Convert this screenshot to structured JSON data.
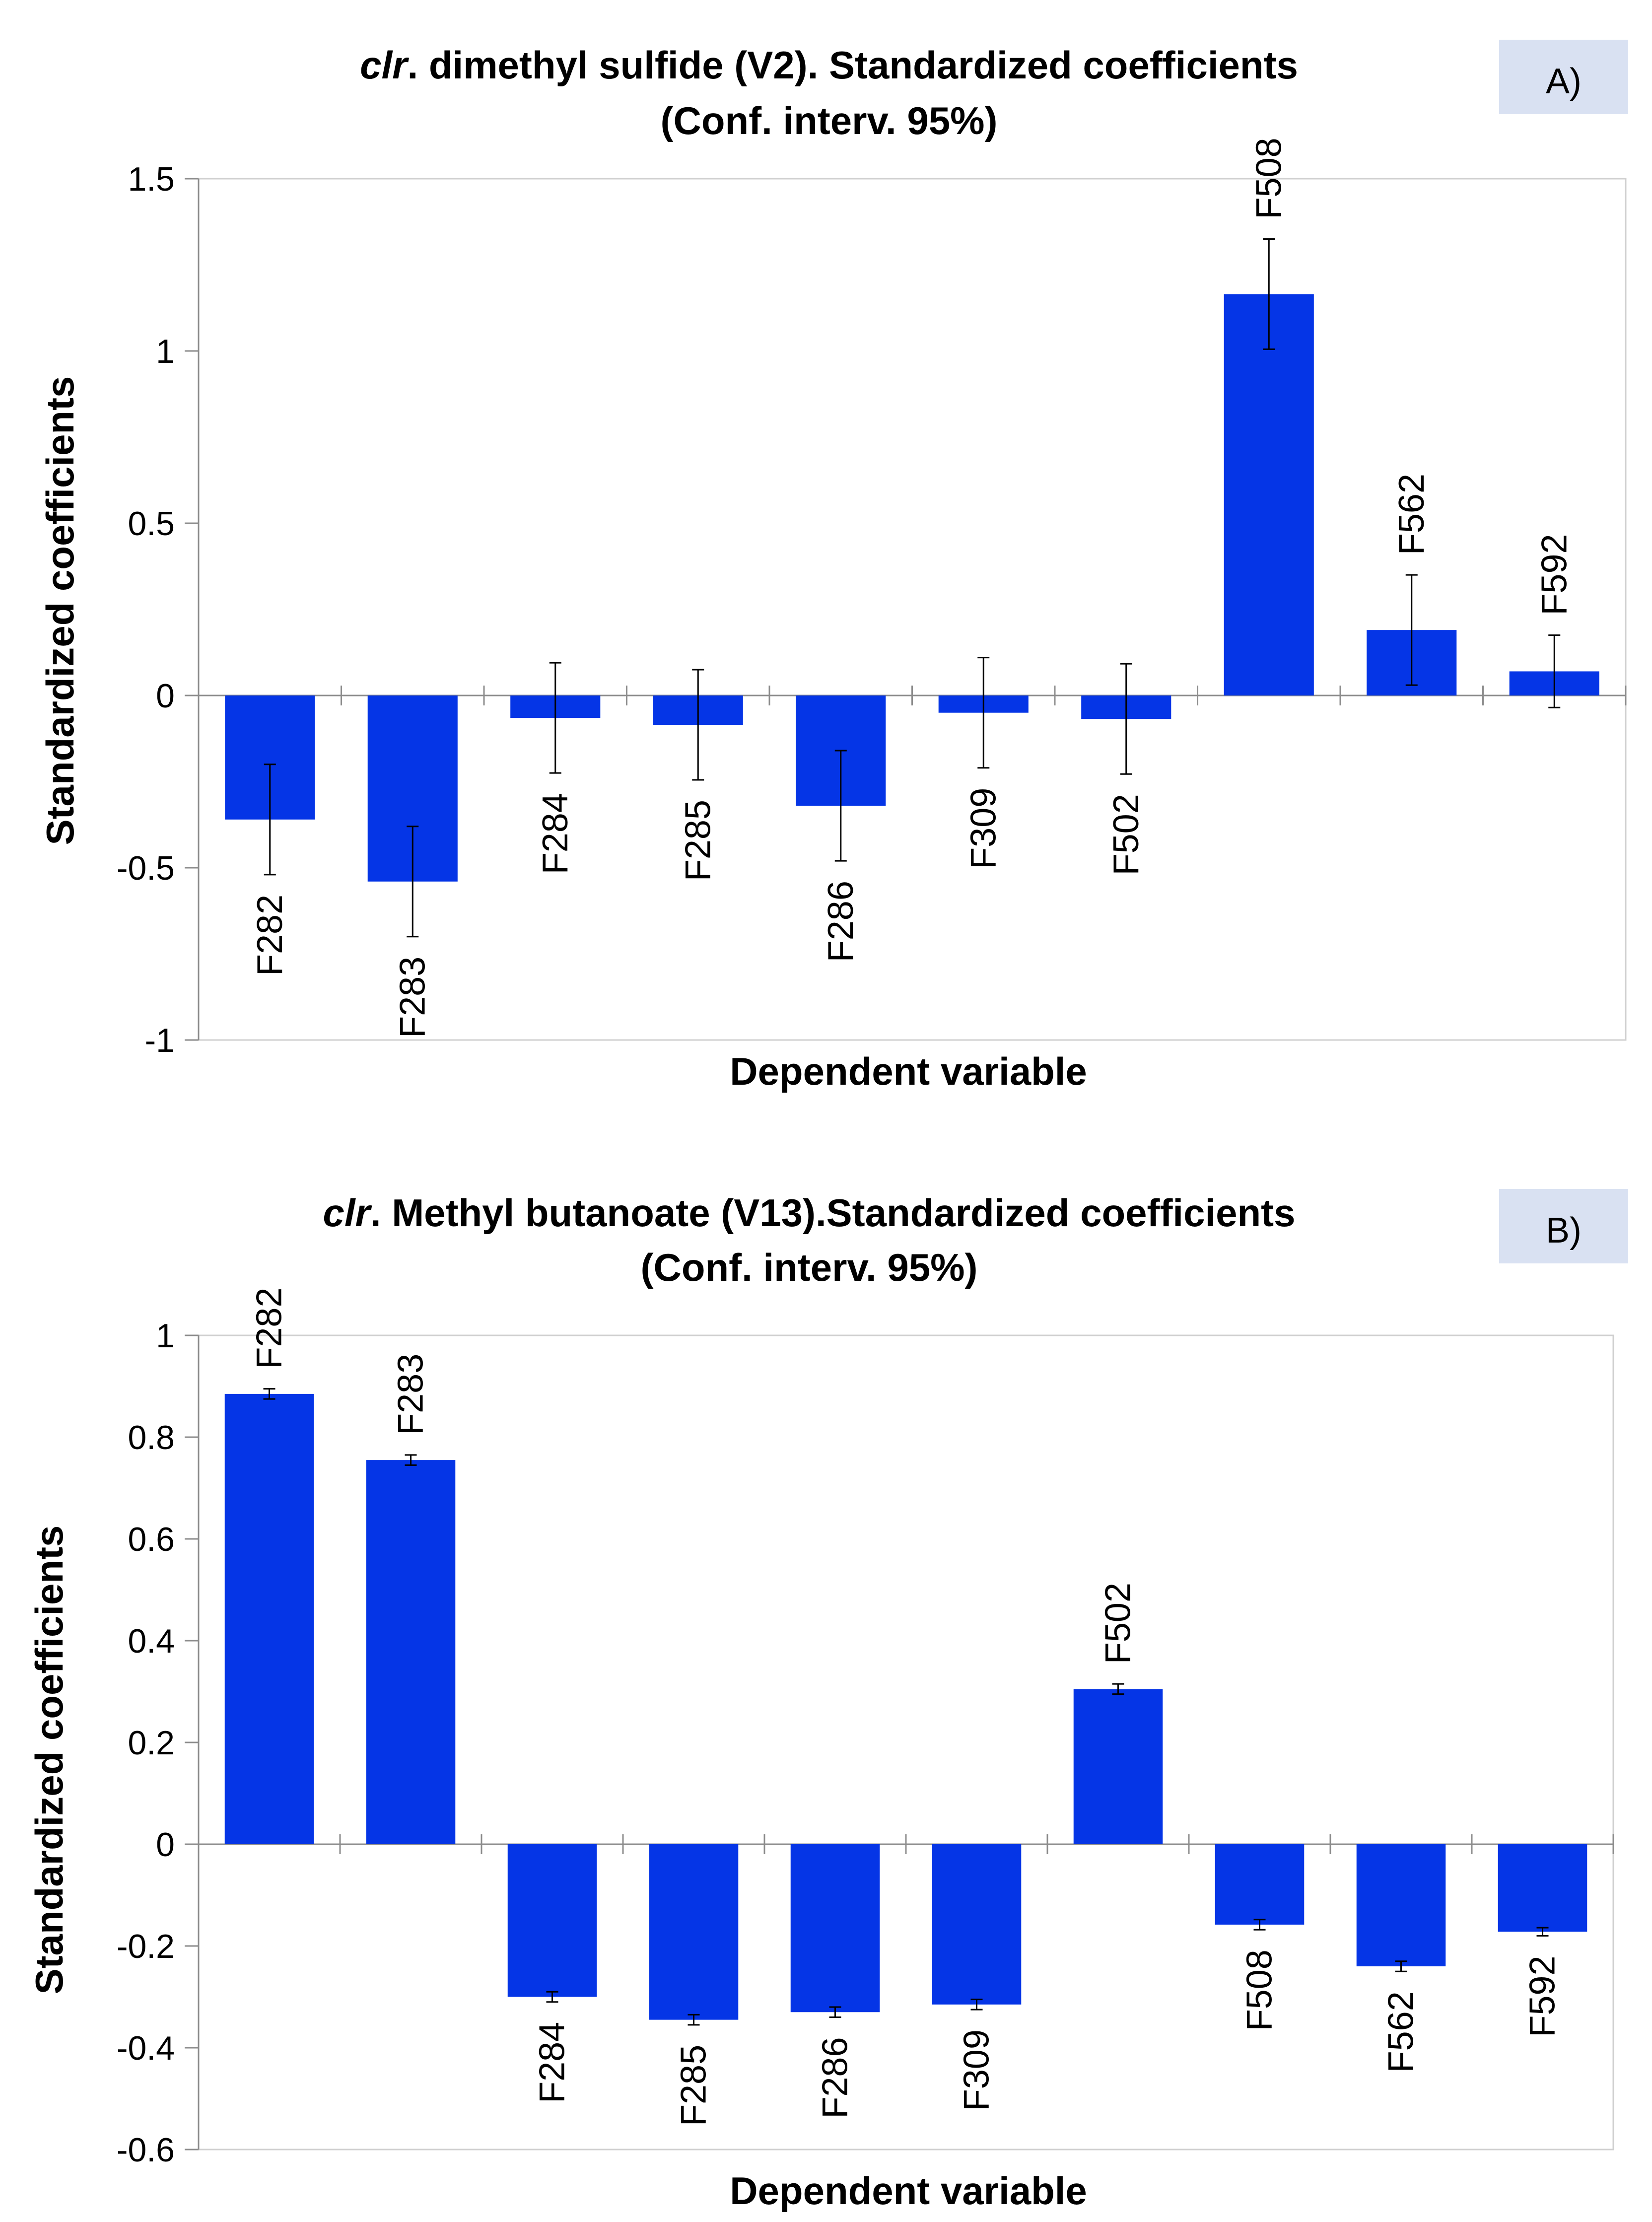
{
  "colors": {
    "bar": "#0535E6",
    "axis": "#8C8C8C",
    "panel_tag_bg": "#D9E1F2",
    "text": "#000000"
  },
  "chart_data": [
    {
      "type": "bar",
      "panel_label": "A)",
      "title_italic": "clr",
      "title_rest": ". dimethyl sulfide (V2). Standardized coefficients",
      "subtitle": "(Conf. interv.  95%)",
      "xlabel": "Dependent variable",
      "ylabel": "Standardized coefficients",
      "ylim": [
        -1,
        1.5
      ],
      "yticks": [
        1.5,
        1,
        0.5,
        0,
        -0.5,
        -1
      ],
      "ytick_labels": [
        "1.5",
        "1",
        "0.5",
        "0",
        "-0.5",
        "-1"
      ],
      "categories": [
        "F282",
        "F283",
        "F284",
        "F285",
        "F286",
        "F309",
        "F502",
        "F508",
        "F562",
        "F592"
      ],
      "values": [
        -0.36,
        -0.54,
        -0.065,
        -0.085,
        -0.32,
        -0.05,
        -0.068,
        1.165,
        0.19,
        0.07
      ],
      "err_low": [
        -0.52,
        -0.7,
        -0.225,
        -0.245,
        -0.48,
        -0.21,
        -0.228,
        1.005,
        0.03,
        -0.035
      ],
      "err_high": [
        -0.2,
        -0.38,
        0.095,
        0.075,
        -0.16,
        0.11,
        0.092,
        1.325,
        0.35,
        0.175
      ],
      "grid": false
    },
    {
      "type": "bar",
      "panel_label": "B)",
      "title_italic": "clr",
      "title_rest": ". Methyl butanoate (V13).Standardized coefficients",
      "subtitle": "(Conf. interv. 95%)",
      "xlabel": "Dependent variable",
      "ylabel": "Standardized coefficients",
      "ylim": [
        -0.6,
        1
      ],
      "yticks": [
        1,
        0.8,
        0.6,
        0.4,
        0.2,
        0,
        -0.2,
        -0.4,
        -0.6
      ],
      "ytick_labels": [
        "1",
        "0.8",
        "0.6",
        "0.4",
        "0.2",
        "0",
        "-0.2",
        "-0.4",
        "-0.6"
      ],
      "categories": [
        "F282",
        "F283",
        "F284",
        "F285",
        "F286",
        "F309",
        "F502",
        "F508",
        "F562",
        "F592"
      ],
      "values": [
        0.885,
        0.755,
        -0.3,
        -0.345,
        -0.33,
        -0.315,
        0.305,
        -0.158,
        -0.24,
        -0.172
      ],
      "err_low": [
        0.875,
        0.745,
        -0.31,
        -0.355,
        -0.34,
        -0.325,
        0.295,
        -0.168,
        -0.25,
        -0.18
      ],
      "err_high": [
        0.895,
        0.765,
        -0.29,
        -0.335,
        -0.32,
        -0.305,
        0.315,
        -0.148,
        -0.23,
        -0.164
      ],
      "grid": false
    }
  ]
}
